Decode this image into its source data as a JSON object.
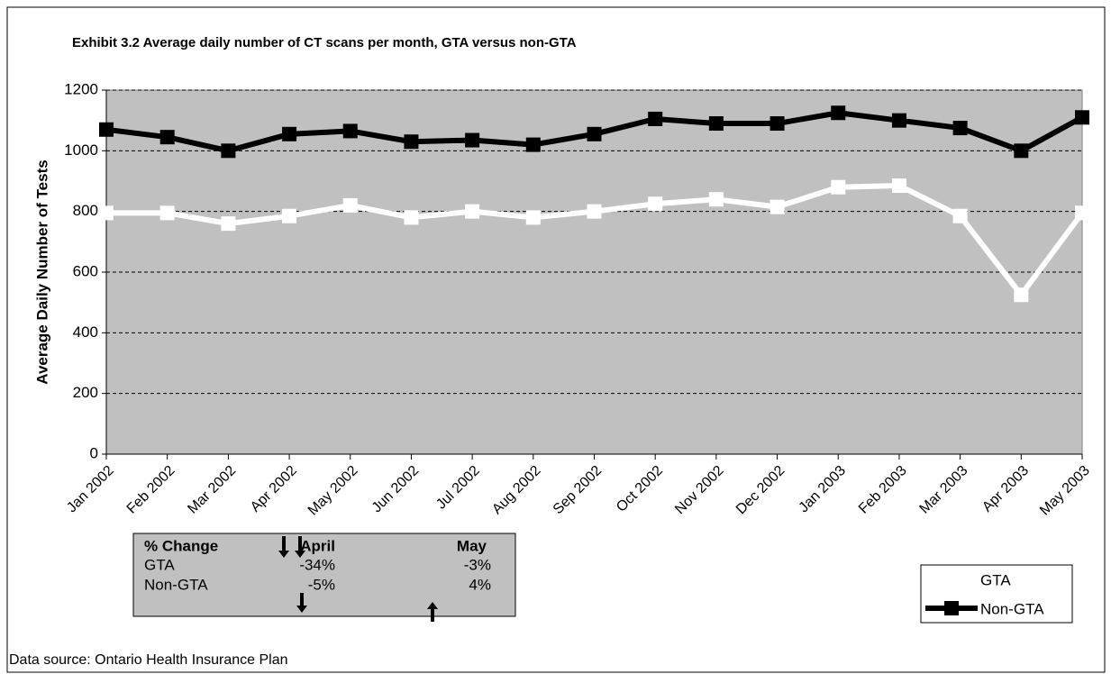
{
  "chart_data": {
    "type": "line",
    "title": "Exhibit 3.2 Average daily number of CT scans per month, GTA versus non-GTA",
    "y_label": "Average Daily Number of Tests",
    "categories": [
      "Jan 2002",
      "Feb 2002",
      "Mar 2002",
      "Apr 2002",
      "May 2002",
      "Jun 2002",
      "Jul 2002",
      "Aug 2002",
      "Sep 2002",
      "Oct 2002",
      "Nov 2002",
      "Dec 2002",
      "Jan 2003",
      "Feb 2003",
      "Mar 2003",
      "Apr 2003",
      "May 2003"
    ],
    "series": [
      {
        "name": "GTA",
        "color": "#ffffff",
        "values": [
          795,
          795,
          760,
          785,
          820,
          780,
          800,
          780,
          800,
          825,
          840,
          815,
          880,
          885,
          785,
          525,
          795
        ]
      },
      {
        "name": "Non-GTA",
        "color": "#000000",
        "values": [
          1070,
          1045,
          1000,
          1055,
          1065,
          1030,
          1035,
          1020,
          1055,
          1105,
          1090,
          1090,
          1125,
          1100,
          1075,
          1000,
          1110
        ]
      }
    ],
    "ylim": [
      0,
      1200
    ],
    "yticks": [
      0,
      200,
      400,
      600,
      800,
      1000,
      1200
    ],
    "grid": true,
    "plot_background": "#c0c0c0",
    "legend_position": "bottom-right",
    "change_table": {
      "header": [
        "% Change",
        "April",
        "May"
      ],
      "rows": [
        [
          "GTA",
          "-34%",
          "-3%"
        ],
        [
          "Non-GTA",
          "-5%",
          "4%"
        ]
      ]
    },
    "source": "Data source: Ontario Health Insurance Plan"
  }
}
